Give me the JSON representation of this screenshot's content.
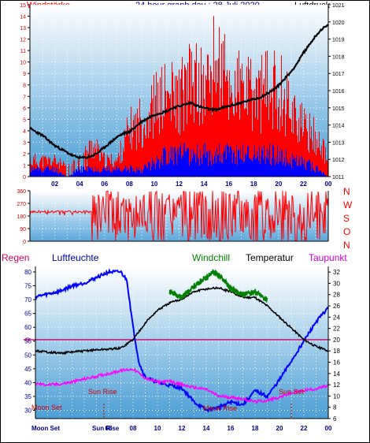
{
  "header": {
    "left": "Windstärke",
    "center": "24 hour graph day : 28 Juli 2020",
    "right": "Luftdruck"
  },
  "wind_letters": [
    "N",
    "W",
    "S",
    "O",
    "N"
  ],
  "bottom_legend": {
    "regen": "Regen",
    "luftfeuchte": "Luftfeuchte",
    "windchill": "Windchill",
    "temperatur": "Temperatur",
    "taupunkt": "Taupunkt"
  },
  "astro": {
    "sun_rise": "Sun Rise",
    "sun_set": "Sun Set",
    "moon_set": "Moon Set",
    "moon_rise": "Moon Rise",
    "axis_moon_set": "Moon Set",
    "axis_sun_rise": "Sun Rise"
  },
  "colors": {
    "header_red": "#ff0000",
    "header_navy": "#000080",
    "wind_bar": "#ff0000",
    "wind_low": "#0000ff",
    "pressure": "#000000",
    "temperature": "#000000",
    "windchill": "#008000",
    "humidity": "#0000ff",
    "dewpoint": "#ff00ff",
    "rain_zero": "#cc0066",
    "astro_text": "#cc0000",
    "gradient_top": "#ffffff",
    "gradient_bottom": "#4a9ed6"
  },
  "chart_data": [
    {
      "type": "bar",
      "name": "wind-pressure",
      "x_ticks": [
        "02",
        "04",
        "06",
        "08",
        "10",
        "12",
        "14",
        "16",
        "18",
        "20",
        "22",
        "00"
      ],
      "y_left_ticks": [
        "0",
        "1",
        "2",
        "3",
        "4",
        "5",
        "6",
        "7",
        "8",
        "9",
        "10",
        "11",
        "12",
        "13",
        "14",
        "15"
      ],
      "y_right_ticks": [
        "1011",
        "1012",
        "1013",
        "1014",
        "1015",
        "1016",
        "1017",
        "1018",
        "1019",
        "1020",
        "1021"
      ],
      "ylim_left": [
        0,
        15
      ],
      "ylim_right": [
        1011,
        1021
      ],
      "xlim_hours": [
        0,
        24
      ],
      "pressure": {
        "x": [
          0,
          0.5,
          1,
          1.5,
          2,
          2.5,
          3,
          3.5,
          4,
          4.5,
          5,
          5.5,
          6,
          6.5,
          7,
          7.5,
          8,
          8.5,
          9,
          9.5,
          10,
          10.5,
          11,
          11.5,
          12,
          12.5,
          13,
          13.5,
          14,
          14.5,
          15,
          15.5,
          16,
          16.5,
          17,
          17.5,
          18,
          18.5,
          19,
          19.5,
          20,
          20.5,
          21,
          21.5,
          22,
          22.5,
          23,
          23.5,
          24
        ],
        "values": [
          1013.8,
          1013.6,
          1013.4,
          1013.1,
          1012.8,
          1012.6,
          1012.4,
          1012.2,
          1012.1,
          1012.1,
          1012.2,
          1012.4,
          1012.7,
          1013.0,
          1013.3,
          1013.5,
          1013.6,
          1013.9,
          1014.2,
          1014.4,
          1014.6,
          1014.7,
          1014.8,
          1015.0,
          1015.1,
          1015.2,
          1015.3,
          1015.1,
          1015.0,
          1014.9,
          1014.9,
          1015.0,
          1015.1,
          1015.2,
          1015.3,
          1015.4,
          1015.5,
          1015.6,
          1015.8,
          1016.0,
          1016.3,
          1016.7,
          1017.1,
          1017.6,
          1018.2,
          1018.7,
          1019.2,
          1019.6,
          1019.8
        ]
      },
      "wind_max_envelope": {
        "x": [
          0,
          1,
          2,
          3,
          4,
          5,
          6,
          7,
          8,
          9,
          10,
          11,
          12,
          13,
          14,
          15,
          16,
          17,
          18,
          19,
          20,
          21,
          22,
          23,
          24
        ],
        "values": [
          2,
          2,
          2,
          1,
          2,
          4,
          2,
          2,
          6,
          7,
          9,
          10,
          10,
          12,
          11,
          15,
          11,
          11,
          10,
          11,
          11,
          9,
          6,
          5,
          2
        ]
      },
      "wind_avg_envelope": {
        "x": [
          0,
          1,
          2,
          3,
          4,
          5,
          6,
          7,
          8,
          9,
          10,
          11,
          12,
          13,
          14,
          15,
          16,
          17,
          18,
          19,
          20,
          21,
          22,
          23,
          24
        ],
        "values": [
          1,
          1,
          1,
          0,
          1,
          1,
          1,
          1,
          1,
          1,
          2,
          3,
          3,
          3,
          3,
          3,
          3,
          3,
          3,
          3,
          3,
          2,
          2,
          1,
          0
        ]
      }
    },
    {
      "type": "line",
      "name": "wind-direction",
      "y_ticks": [
        "0",
        "90",
        "180",
        "270",
        "360"
      ],
      "ylim": [
        0,
        360
      ],
      "x": [
        0,
        1,
        2,
        3,
        4,
        4.7,
        5,
        6,
        7,
        8,
        9,
        10,
        11,
        12,
        13,
        14,
        15,
        16,
        17,
        18,
        19,
        20,
        21,
        22,
        23,
        24
      ],
      "values": [
        220,
        220,
        210,
        210,
        210,
        210,
        360,
        20,
        310,
        60,
        280,
        20,
        330,
        40,
        300,
        10,
        250,
        60,
        300,
        30,
        270,
        40,
        310,
        20,
        250,
        290
      ]
    },
    {
      "type": "line",
      "name": "temperature-humidity",
      "y_left_ticks": [
        "30",
        "35",
        "40",
        "45",
        "50",
        "55",
        "60",
        "65",
        "70",
        "75",
        "80"
      ],
      "y_right_ticks": [
        "6",
        "8",
        "10",
        "12",
        "14",
        "16",
        "18",
        "20",
        "22",
        "24",
        "26",
        "28",
        "30",
        "32"
      ],
      "ylim_humidity": [
        27,
        82
      ],
      "ylim_temperature": [
        6,
        33
      ],
      "rain_zero_label": "0",
      "x_ticks": [
        "02",
        "04",
        "06",
        "08",
        "10",
        "12",
        "14",
        "16",
        "18",
        "20",
        "22",
        "00"
      ],
      "series": [
        {
          "name": "Luftfeuchte",
          "x": [
            0,
            1,
            2,
            3,
            4,
            5,
            6,
            7,
            7.5,
            8,
            8.5,
            9,
            10,
            11,
            12,
            13,
            14,
            15,
            16,
            17,
            18,
            19,
            20,
            21,
            22,
            23,
            24
          ],
          "values": [
            71,
            72,
            73,
            75,
            76,
            78,
            80,
            80,
            77,
            60,
            47,
            42,
            40,
            39,
            38,
            33,
            30,
            31,
            33,
            32,
            37,
            35,
            41,
            48,
            55,
            62,
            67
          ]
        },
        {
          "name": "Temperatur",
          "x": [
            0,
            1,
            2,
            3,
            4,
            5,
            6,
            7,
            8,
            9,
            10,
            11,
            12,
            13,
            14,
            15,
            16,
            17,
            18,
            19,
            20,
            21,
            22,
            23,
            24
          ],
          "values": [
            18.0,
            17.8,
            17.6,
            17.8,
            18.0,
            18.2,
            18.3,
            18.5,
            20.0,
            23.0,
            25.2,
            26.5,
            27.2,
            28.5,
            29.0,
            29.2,
            28.5,
            27.5,
            27.5,
            26.0,
            24.0,
            22.0,
            20.0,
            18.8,
            18.0
          ]
        },
        {
          "name": "Windchill",
          "x": [
            11,
            12,
            13,
            14,
            14.5,
            15,
            15.5,
            16,
            17,
            18,
            19
          ],
          "values": [
            28.5,
            27.5,
            29.5,
            31.0,
            32.0,
            31.5,
            30.5,
            29.0,
            28.0,
            28.5,
            27.0
          ]
        },
        {
          "name": "Taupunkt",
          "x": [
            0,
            1,
            2,
            3,
            4,
            5,
            6,
            7,
            8,
            9,
            10,
            11,
            12,
            13,
            14,
            15,
            16,
            17,
            18,
            19,
            20,
            21,
            22,
            23,
            24
          ],
          "values": [
            12.2,
            12.0,
            12.1,
            12.5,
            13.0,
            13.5,
            14.0,
            14.5,
            14.8,
            13.2,
            12.5,
            12.6,
            12.0,
            11.5,
            11.2,
            10.0,
            9.8,
            9.5,
            9.0,
            9.2,
            9.8,
            10.5,
            11.0,
            11.3,
            11.8
          ]
        }
      ]
    }
  ]
}
